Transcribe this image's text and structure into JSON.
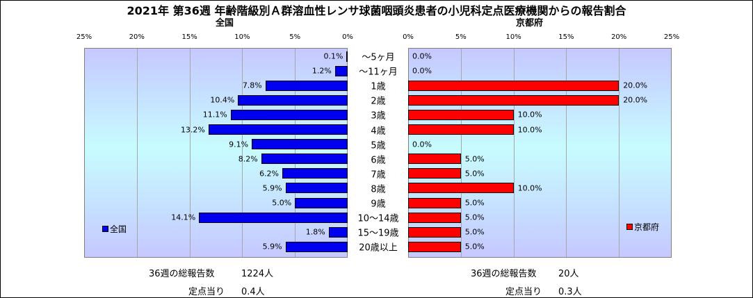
{
  "title": "2021年 第36週 年齢階級別Ａ群溶血性レンサ球菌咽頭炎患者の小児科定点医療機関からの報告割合",
  "panels": {
    "left_title": "全国",
    "right_title": "京都府"
  },
  "chart_data": {
    "type": "bar",
    "orientation": "horizontal",
    "layout": "back-to-back",
    "title": "2021年 第36週 年齢階級別Ａ群溶血性レンサ球菌咽頭炎患者の小児科定点医療機関からの報告割合",
    "categories": [
      "～5ヶ月",
      "～11ヶ月",
      "1歳",
      "2歳",
      "3歳",
      "4歳",
      "5歳",
      "6歳",
      "7歳",
      "8歳",
      "9歳",
      "10～14歳",
      "15～19歳",
      "20歳以上"
    ],
    "xlim": [
      0,
      25
    ],
    "xticks": [
      "0%",
      "5%",
      "10%",
      "15%",
      "20%",
      "25%"
    ],
    "left_xticks": [
      "25%",
      "20%",
      "15%",
      "10%",
      "5%",
      "0%"
    ],
    "grid": true,
    "series": [
      {
        "name": "全国",
        "color": "#0000ee",
        "side": "left",
        "values": [
          0.1,
          1.2,
          7.8,
          10.4,
          11.1,
          13.2,
          9.1,
          8.2,
          6.2,
          5.9,
          5.0,
          14.1,
          1.8,
          5.9
        ],
        "labels": [
          "0.1%",
          "1.2%",
          "7.8%",
          "10.4%",
          "11.1%",
          "13.2%",
          "9.1%",
          "8.2%",
          "6.2%",
          "5.9%",
          "5.0%",
          "14.1%",
          "1.8%",
          "5.9%"
        ],
        "legend_position": "bottom-left"
      },
      {
        "name": "京都府",
        "color": "#ff0000",
        "side": "right",
        "values": [
          0.0,
          0.0,
          20.0,
          20.0,
          10.0,
          10.0,
          0.0,
          5.0,
          5.0,
          10.0,
          5.0,
          5.0,
          5.0,
          5.0
        ],
        "labels": [
          "0.0%",
          "0.0%",
          "20.0%",
          "20.0%",
          "10.0%",
          "10.0%",
          "0.0%",
          "5.0%",
          "5.0%",
          "10.0%",
          "5.0%",
          "5.0%",
          "5.0%",
          "5.0%"
        ],
        "legend_position": "bottom-right"
      }
    ]
  },
  "stats": {
    "national": {
      "label_total": "36週の総報告数",
      "total": "1224人",
      "label_per": "定点当り",
      "per": "0.4人"
    },
    "kyoto": {
      "label_total": "36週の総報告数",
      "total": "20人",
      "label_per": "定点当り",
      "per": "0.3人"
    }
  }
}
